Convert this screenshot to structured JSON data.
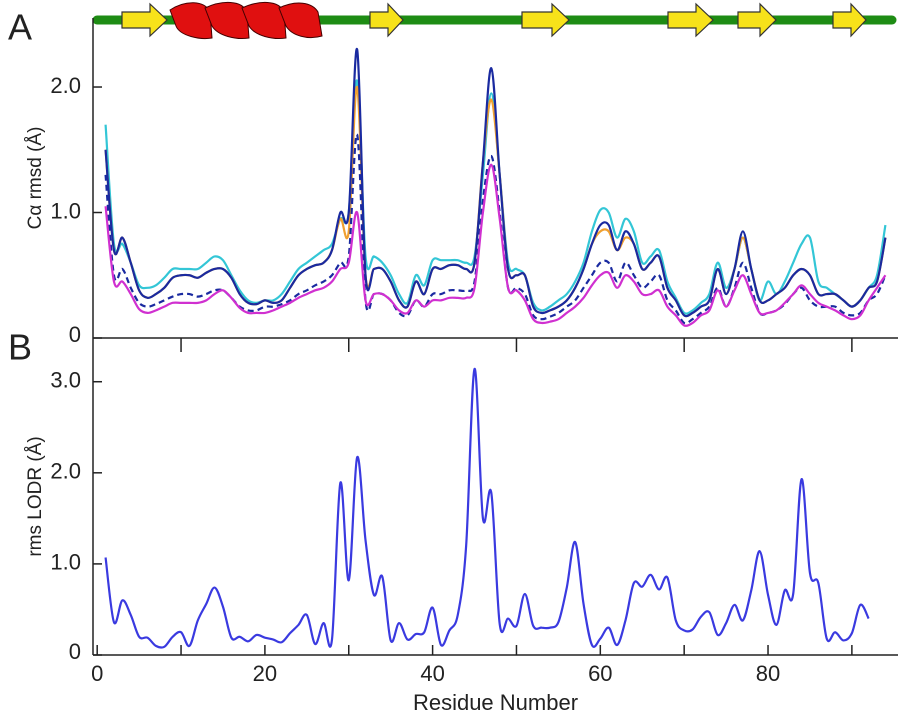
{
  "chart_data": [
    {
      "type": "line",
      "panel_label": "A",
      "ylabel": "Cα rmsd (Å)",
      "x": [
        1,
        2,
        3,
        4,
        5,
        6,
        7,
        8,
        9,
        10,
        11,
        12,
        13,
        14,
        15,
        16,
        17,
        18,
        19,
        20,
        21,
        22,
        23,
        24,
        25,
        26,
        27,
        28,
        29,
        30,
        31,
        32,
        33,
        34,
        35,
        36,
        37,
        38,
        39,
        40,
        41,
        42,
        43,
        44,
        45,
        46,
        47,
        48,
        49,
        50,
        51,
        52,
        53,
        54,
        55,
        56,
        57,
        58,
        59,
        60,
        61,
        62,
        63,
        64,
        65,
        66,
        67,
        68,
        69,
        70,
        71,
        72,
        73,
        74,
        75,
        76,
        77,
        78,
        79,
        80,
        81,
        82,
        83,
        84,
        85,
        86,
        87,
        88,
        89,
        90,
        91,
        92,
        93,
        94
      ],
      "xlim": [
        -0.5,
        95.5
      ],
      "ylim": [
        0,
        2.55
      ],
      "yticks": [
        0,
        {
          "value": 1,
          "label": "1.0"
        },
        {
          "value": 2,
          "label": "2.0"
        }
      ],
      "series": [
        {
          "color": "#33c6d6",
          "style": "solid",
          "values": [
            1.7,
            0.75,
            0.75,
            0.6,
            0.42,
            0.4,
            0.42,
            0.48,
            0.55,
            0.55,
            0.55,
            0.55,
            0.6,
            0.65,
            0.62,
            0.5,
            0.38,
            0.3,
            0.28,
            0.3,
            0.3,
            0.35,
            0.45,
            0.55,
            0.6,
            0.65,
            0.7,
            0.75,
            0.95,
            1.0,
            2.05,
            0.65,
            0.65,
            0.6,
            0.5,
            0.35,
            0.28,
            0.5,
            0.42,
            0.62,
            0.62,
            0.62,
            0.62,
            0.6,
            0.65,
            1.3,
            1.95,
            1.3,
            0.6,
            0.55,
            0.5,
            0.28,
            0.22,
            0.25,
            0.3,
            0.35,
            0.45,
            0.6,
            0.85,
            1.02,
            1.0,
            0.8,
            0.95,
            0.85,
            0.6,
            0.65,
            0.7,
            0.45,
            0.32,
            0.2,
            0.22,
            0.28,
            0.35,
            0.6,
            0.4,
            0.55,
            0.8,
            0.55,
            0.3,
            0.45,
            0.35,
            0.45,
            0.6,
            0.75,
            0.8,
            0.45,
            0.4,
            0.35,
            0.3,
            0.25,
            0.3,
            0.4,
            0.5,
            0.9
          ]
        },
        {
          "color": "#f0a030",
          "style": "solid",
          "values": [
            1.5,
            0.7,
            0.8,
            0.6,
            0.38,
            0.32,
            0.35,
            0.4,
            0.48,
            0.5,
            0.5,
            0.48,
            0.52,
            0.55,
            0.55,
            0.48,
            0.35,
            0.28,
            0.27,
            0.3,
            0.28,
            0.3,
            0.4,
            0.5,
            0.55,
            0.58,
            0.6,
            0.7,
            0.95,
            0.85,
            2.0,
            0.5,
            0.55,
            0.55,
            0.45,
            0.3,
            0.25,
            0.45,
            0.35,
            0.55,
            0.55,
            0.58,
            0.58,
            0.55,
            0.6,
            1.4,
            1.9,
            1.3,
            0.55,
            0.5,
            0.5,
            0.25,
            0.2,
            0.22,
            0.25,
            0.3,
            0.4,
            0.55,
            0.75,
            0.85,
            0.85,
            0.7,
            0.8,
            0.75,
            0.55,
            0.6,
            0.65,
            0.4,
            0.3,
            0.18,
            0.2,
            0.25,
            0.3,
            0.55,
            0.35,
            0.55,
            0.8,
            0.55,
            0.3,
            0.3,
            0.35,
            0.4,
            0.5,
            0.55,
            0.5,
            0.35,
            0.35,
            0.35,
            0.3,
            0.25,
            0.3,
            0.4,
            0.45,
            0.8
          ]
        },
        {
          "color": "#1a2aa0",
          "style": "solid",
          "values": [
            1.5,
            0.7,
            0.8,
            0.6,
            0.38,
            0.32,
            0.35,
            0.4,
            0.48,
            0.5,
            0.5,
            0.48,
            0.52,
            0.55,
            0.55,
            0.48,
            0.35,
            0.28,
            0.27,
            0.3,
            0.28,
            0.3,
            0.4,
            0.5,
            0.55,
            0.58,
            0.6,
            0.7,
            1.0,
            1.0,
            2.3,
            0.5,
            0.55,
            0.55,
            0.45,
            0.3,
            0.25,
            0.45,
            0.35,
            0.55,
            0.55,
            0.58,
            0.58,
            0.55,
            0.6,
            1.4,
            2.15,
            1.3,
            0.55,
            0.5,
            0.5,
            0.25,
            0.2,
            0.22,
            0.25,
            0.3,
            0.4,
            0.55,
            0.75,
            0.9,
            0.9,
            0.7,
            0.85,
            0.75,
            0.55,
            0.6,
            0.65,
            0.4,
            0.3,
            0.18,
            0.2,
            0.25,
            0.3,
            0.55,
            0.35,
            0.55,
            0.85,
            0.55,
            0.3,
            0.3,
            0.35,
            0.4,
            0.5,
            0.55,
            0.5,
            0.35,
            0.35,
            0.35,
            0.3,
            0.25,
            0.3,
            0.4,
            0.45,
            0.8
          ]
        },
        {
          "color": "#1a2aa0",
          "style": "dashed",
          "values": [
            1.3,
            0.5,
            0.55,
            0.4,
            0.28,
            0.25,
            0.27,
            0.3,
            0.33,
            0.35,
            0.35,
            0.33,
            0.35,
            0.38,
            0.38,
            0.32,
            0.25,
            0.22,
            0.22,
            0.25,
            0.25,
            0.27,
            0.3,
            0.35,
            0.38,
            0.42,
            0.45,
            0.5,
            0.6,
            0.65,
            1.62,
            0.3,
            0.35,
            0.35,
            0.3,
            0.2,
            0.18,
            0.3,
            0.25,
            0.35,
            0.35,
            0.38,
            0.38,
            0.38,
            0.45,
            1.1,
            1.45,
            1.0,
            0.4,
            0.4,
            0.35,
            0.18,
            0.15,
            0.17,
            0.2,
            0.25,
            0.3,
            0.4,
            0.5,
            0.6,
            0.6,
            0.45,
            0.6,
            0.5,
            0.4,
            0.45,
            0.5,
            0.3,
            0.22,
            0.12,
            0.15,
            0.2,
            0.25,
            0.4,
            0.25,
            0.4,
            0.6,
            0.4,
            0.2,
            0.2,
            0.22,
            0.27,
            0.35,
            0.4,
            0.3,
            0.25,
            0.25,
            0.25,
            0.2,
            0.18,
            0.2,
            0.3,
            0.35,
            0.5
          ]
        },
        {
          "color": "#d030d0",
          "style": "solid",
          "values": [
            1.05,
            0.45,
            0.45,
            0.35,
            0.23,
            0.2,
            0.22,
            0.25,
            0.28,
            0.28,
            0.28,
            0.28,
            0.3,
            0.35,
            0.38,
            0.32,
            0.24,
            0.2,
            0.2,
            0.2,
            0.22,
            0.25,
            0.28,
            0.32,
            0.35,
            0.38,
            0.4,
            0.45,
            0.55,
            0.6,
            1.0,
            0.3,
            0.35,
            0.35,
            0.3,
            0.22,
            0.2,
            0.3,
            0.25,
            0.3,
            0.3,
            0.32,
            0.32,
            0.32,
            0.4,
            1.0,
            1.38,
            0.95,
            0.4,
            0.38,
            0.3,
            0.15,
            0.12,
            0.13,
            0.15,
            0.2,
            0.25,
            0.32,
            0.42,
            0.5,
            0.52,
            0.4,
            0.5,
            0.45,
            0.35,
            0.35,
            0.38,
            0.25,
            0.18,
            0.1,
            0.12,
            0.18,
            0.22,
            0.38,
            0.25,
            0.38,
            0.5,
            0.35,
            0.2,
            0.2,
            0.22,
            0.28,
            0.35,
            0.42,
            0.35,
            0.28,
            0.25,
            0.22,
            0.18,
            0.15,
            0.18,
            0.3,
            0.4,
            0.5
          ]
        }
      ]
    },
    {
      "type": "line",
      "panel_label": "B",
      "ylabel": "rms LODR (Å)",
      "xlabel": "Residue Number",
      "x": [
        1,
        2,
        3,
        4,
        5,
        6,
        7,
        8,
        9,
        10,
        11,
        12,
        13,
        14,
        15,
        16,
        17,
        18,
        19,
        20,
        21,
        22,
        23,
        24,
        25,
        26,
        27,
        28,
        29,
        30,
        31,
        32,
        33,
        34,
        35,
        36,
        37,
        38,
        39,
        40,
        41,
        42,
        43,
        44,
        45,
        46,
        47,
        48,
        49,
        50,
        51,
        52,
        53,
        54,
        55,
        56,
        57,
        58,
        59,
        60,
        61,
        62,
        63,
        64,
        65,
        66,
        67,
        68,
        69,
        70,
        71,
        72,
        73,
        74,
        75,
        76,
        77,
        78,
        79,
        80,
        81,
        82,
        83,
        84,
        85,
        86,
        87,
        88,
        89,
        90,
        91,
        92
      ],
      "xlim": [
        -0.5,
        95.5
      ],
      "ylim": [
        0,
        3.48
      ],
      "xticks": [
        0,
        20,
        40,
        60,
        80
      ],
      "yticks": [
        0,
        {
          "value": 1,
          "label": "1.0"
        },
        {
          "value": 2,
          "label": "2.0"
        },
        {
          "value": 3,
          "label": "3.0"
        }
      ],
      "series": [
        {
          "color": "#3a3ae0",
          "style": "solid",
          "values": [
            1.07,
            0.36,
            0.6,
            0.44,
            0.2,
            0.19,
            0.1,
            0.09,
            0.2,
            0.25,
            0.1,
            0.38,
            0.56,
            0.74,
            0.53,
            0.19,
            0.2,
            0.15,
            0.22,
            0.19,
            0.17,
            0.14,
            0.24,
            0.33,
            0.44,
            0.12,
            0.35,
            0.17,
            1.89,
            0.82,
            2.17,
            1.26,
            0.66,
            0.86,
            0.16,
            0.35,
            0.17,
            0.23,
            0.25,
            0.52,
            0.11,
            0.27,
            0.44,
            1.2,
            3.14,
            1.5,
            1.78,
            0.34,
            0.4,
            0.32,
            0.67,
            0.32,
            0.3,
            0.3,
            0.36,
            0.74,
            1.24,
            0.56,
            0.11,
            0.18,
            0.3,
            0.11,
            0.38,
            0.79,
            0.75,
            0.88,
            0.72,
            0.85,
            0.38,
            0.27,
            0.28,
            0.42,
            0.47,
            0.22,
            0.35,
            0.55,
            0.38,
            0.71,
            1.14,
            0.66,
            0.33,
            0.71,
            0.67,
            1.93,
            0.9,
            0.79,
            0.18,
            0.25,
            0.16,
            0.24,
            0.55,
            0.4
          ]
        }
      ]
    }
  ]
}
